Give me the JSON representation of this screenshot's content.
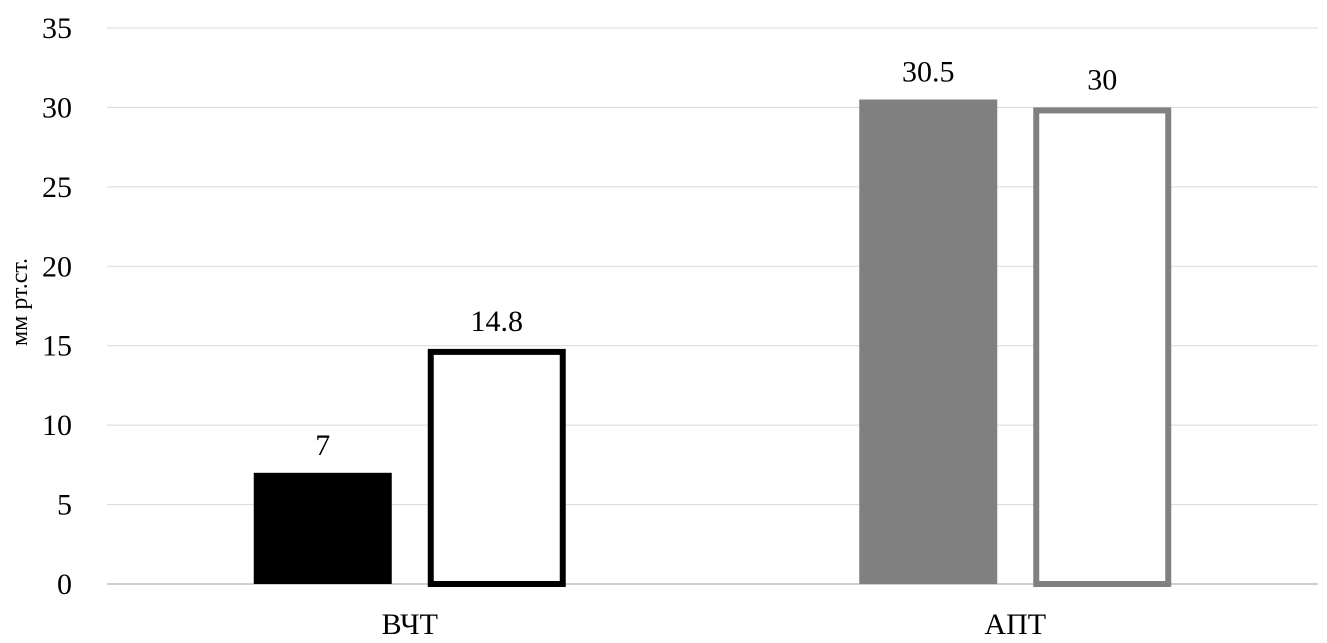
{
  "chart_data": {
    "type": "bar",
    "categories": [
      "ВЧТ",
      "АПТ"
    ],
    "ylabel": "мм рт.ст.",
    "ylim": [
      0,
      35
    ],
    "ytick_step": 5,
    "yticks": [
      "0",
      "5",
      "10",
      "15",
      "20",
      "25",
      "30",
      "35"
    ],
    "grid": true,
    "bars": [
      {
        "category": "ВЧТ",
        "value": 7,
        "label": "7",
        "style": "filled",
        "color": "#000000"
      },
      {
        "category": "ВЧТ",
        "value": 14.8,
        "label": "14.8",
        "style": "outline",
        "color": "#000000"
      },
      {
        "category": "АПТ",
        "value": 30.5,
        "label": "30.5",
        "style": "filled",
        "color": "#808080"
      },
      {
        "category": "АПТ",
        "value": 30,
        "label": "30",
        "style": "outline",
        "color": "#808080"
      }
    ],
    "colors": {
      "grid": "#d9d9d9",
      "axis": "#bfbfbf"
    }
  }
}
